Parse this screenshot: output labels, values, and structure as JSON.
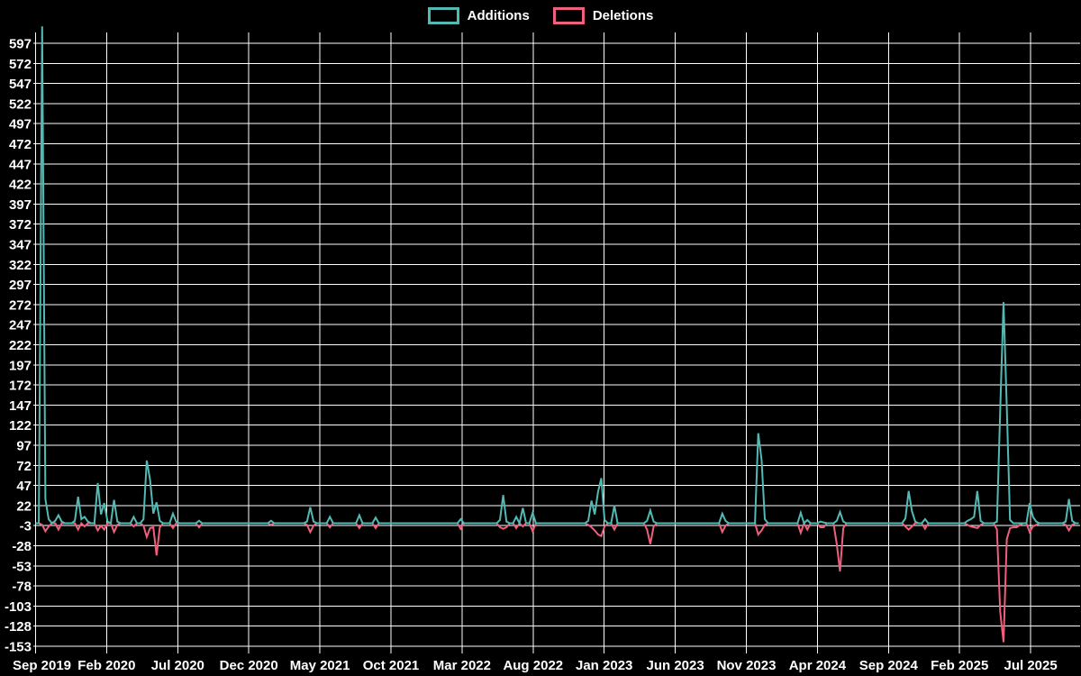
{
  "colors": {
    "background": "#000000",
    "text": "#ffffff",
    "grid": "#ffffff"
  },
  "legend": {
    "position": "top-center"
  },
  "chart_data": {
    "type": "line",
    "title": "",
    "xlabel": "",
    "ylabel": "",
    "grid": true,
    "series": [
      {
        "name": "Additions",
        "color": "#52bab4"
      },
      {
        "name": "Deletions",
        "color": "#f05f7d"
      }
    ],
    "x_axis": {
      "tick_labels": [
        "Sep 2019",
        "Feb 2020",
        "Jul 2020",
        "Dec 2020",
        "May 2021",
        "Oct 2021",
        "Mar 2022",
        "Aug 2022",
        "Jan 2023",
        "Jun 2023",
        "Nov 2023",
        "Apr 2024",
        "Sep 2024",
        "Feb 2025",
        "Jul 2025"
      ],
      "tick_interval_months": 5
    },
    "y_axis": {
      "tick_labels": [
        597,
        572,
        547,
        522,
        497,
        472,
        447,
        422,
        397,
        372,
        347,
        322,
        297,
        272,
        247,
        222,
        197,
        172,
        147,
        122,
        97,
        72,
        47,
        22,
        -3,
        -28,
        -53,
        -78,
        -103,
        -128,
        -153
      ],
      "min": -162,
      "max": 620
    },
    "weekly_points": {
      "description": "weeks since Sep 2019; values [additions, deletions]; unlisted weeks are [0,0]",
      "total_weeks": 319,
      "events": {
        "2": [
          618,
          -2
        ],
        "3": [
          30,
          -10
        ],
        "4": [
          5,
          -4
        ],
        "6": [
          3,
          0
        ],
        "7": [
          10,
          -8
        ],
        "8": [
          2,
          0
        ],
        "12": [
          3,
          0
        ],
        "13": [
          33,
          -8
        ],
        "14": [
          5,
          0
        ],
        "15": [
          8,
          -4
        ],
        "16": [
          2,
          0
        ],
        "19": [
          50,
          -9
        ],
        "20": [
          11,
          -3
        ],
        "21": [
          25,
          -8
        ],
        "22": [
          2,
          0
        ],
        "24": [
          29,
          -11
        ],
        "25": [
          2,
          -2
        ],
        "30": [
          8,
          -4
        ],
        "33": [
          5,
          -3
        ],
        "34": [
          78,
          -17
        ],
        "35": [
          54,
          -6
        ],
        "36": [
          12,
          -5
        ],
        "37": [
          26,
          -40
        ],
        "38": [
          3,
          -5
        ],
        "42": [
          12,
          -6
        ],
        "43": [
          2,
          0
        ],
        "50": [
          3,
          -5
        ],
        "72": [
          3,
          -2
        ],
        "83": [
          2,
          -2
        ],
        "84": [
          20,
          -11
        ],
        "85": [
          2,
          -3
        ],
        "90": [
          8,
          -5
        ],
        "99": [
          10,
          -6
        ],
        "104": [
          7,
          -6
        ],
        "130": [
          5,
          -7
        ],
        "142": [
          4,
          -5
        ],
        "143": [
          35,
          -7
        ],
        "144": [
          2,
          -5
        ],
        "147": [
          8,
          -6
        ],
        "149": [
          19,
          -4
        ],
        "152": [
          13,
          -10
        ],
        "169": [
          3,
          -2
        ],
        "170": [
          28,
          -5
        ],
        "171": [
          11,
          -9
        ],
        "172": [
          39,
          -14
        ],
        "173": [
          56,
          -16
        ],
        "174": [
          4,
          -4
        ],
        "177": [
          22,
          -8
        ],
        "187": [
          3,
          -8
        ],
        "188": [
          16,
          -26
        ],
        "189": [
          2,
          -4
        ],
        "210": [
          12,
          -11
        ],
        "211": [
          3,
          -3
        ],
        "221": [
          112,
          -14
        ],
        "222": [
          79,
          -9
        ],
        "223": [
          5,
          -2
        ],
        "234": [
          13,
          -12
        ],
        "236": [
          4,
          -8
        ],
        "240": [
          2,
          -5
        ],
        "241": [
          1,
          -5
        ],
        "245": [
          3,
          -26
        ],
        "246": [
          14,
          -60
        ],
        "247": [
          2,
          -6
        ],
        "266": [
          6,
          -4
        ],
        "267": [
          40,
          -8
        ],
        "268": [
          15,
          -4
        ],
        "269": [
          2,
          0
        ],
        "272": [
          5,
          -7
        ],
        "285": [
          3,
          -2
        ],
        "286": [
          5,
          -4
        ],
        "287": [
          8,
          -5
        ],
        "288": [
          40,
          -6
        ],
        "289": [
          3,
          -2
        ],
        "294": [
          2,
          -8
        ],
        "295": [
          140,
          -110
        ],
        "296": [
          275,
          -148
        ],
        "297": [
          145,
          -20
        ],
        "298": [
          4,
          -6
        ],
        "299": [
          0,
          -5
        ],
        "300": [
          0,
          -5
        ],
        "301": [
          0,
          -2
        ],
        "304": [
          25,
          -11
        ],
        "305": [
          8,
          -4
        ],
        "306": [
          2,
          -2
        ],
        "315": [
          2,
          -2
        ],
        "316": [
          30,
          -9
        ],
        "317": [
          3,
          -2
        ]
      }
    }
  }
}
